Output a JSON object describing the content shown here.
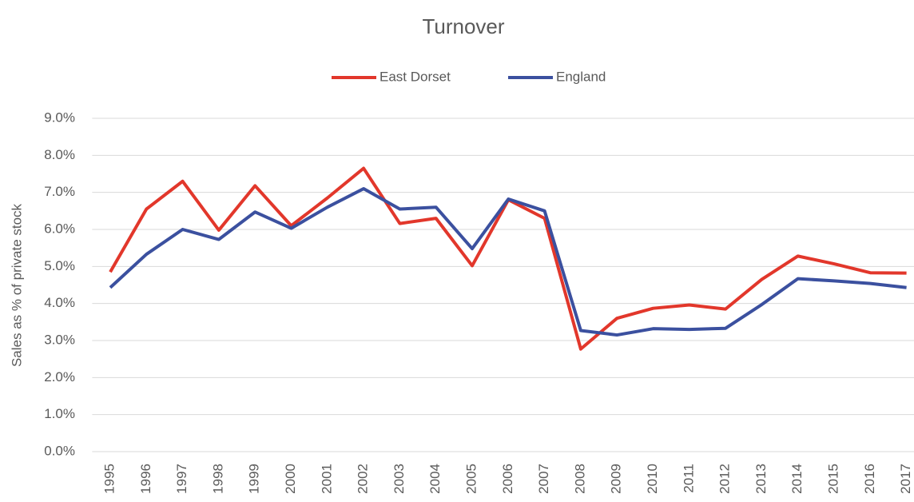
{
  "chart_data": {
    "type": "line",
    "title": "Turnover",
    "ylabel": "Sales as % of private stock",
    "categories": [
      "1995",
      "1996",
      "1997",
      "1998",
      "1999",
      "2000",
      "2001",
      "2002",
      "2003",
      "2004",
      "2005",
      "2006",
      "2007",
      "2008",
      "2009",
      "2010",
      "2011",
      "2012",
      "2013",
      "2014",
      "2015",
      "2016",
      "2017"
    ],
    "series": [
      {
        "name": "East Dorset",
        "color": "#e2372b",
        "values": [
          4.85,
          6.55,
          7.3,
          5.98,
          7.18,
          6.1,
          6.85,
          7.65,
          6.16,
          6.3,
          5.02,
          6.8,
          6.3,
          2.77,
          3.6,
          3.87,
          3.96,
          3.85,
          4.65,
          5.28,
          5.07,
          4.83,
          4.82
        ]
      },
      {
        "name": "England",
        "color": "#3b509f",
        "values": [
          4.43,
          5.33,
          6.0,
          5.73,
          6.47,
          6.03,
          6.6,
          7.1,
          6.55,
          6.6,
          5.48,
          6.82,
          6.5,
          3.27,
          3.15,
          3.32,
          3.3,
          3.33,
          3.97,
          4.67,
          4.61,
          4.54,
          4.43
        ]
      }
    ],
    "ylim": [
      0,
      9
    ],
    "yticks": [
      {
        "value": 0,
        "label": "0.0%"
      },
      {
        "value": 1,
        "label": "1.0%"
      },
      {
        "value": 2,
        "label": "2.0%"
      },
      {
        "value": 3,
        "label": "3.0%"
      },
      {
        "value": 4,
        "label": "4.0%"
      },
      {
        "value": 5,
        "label": "5.0%"
      },
      {
        "value": 6,
        "label": "6.0%"
      },
      {
        "value": 7,
        "label": "7.0%"
      },
      {
        "value": 8,
        "label": "8.0%"
      },
      {
        "value": 9,
        "label": "9.0%"
      }
    ],
    "grid": true,
    "legend": "top"
  }
}
